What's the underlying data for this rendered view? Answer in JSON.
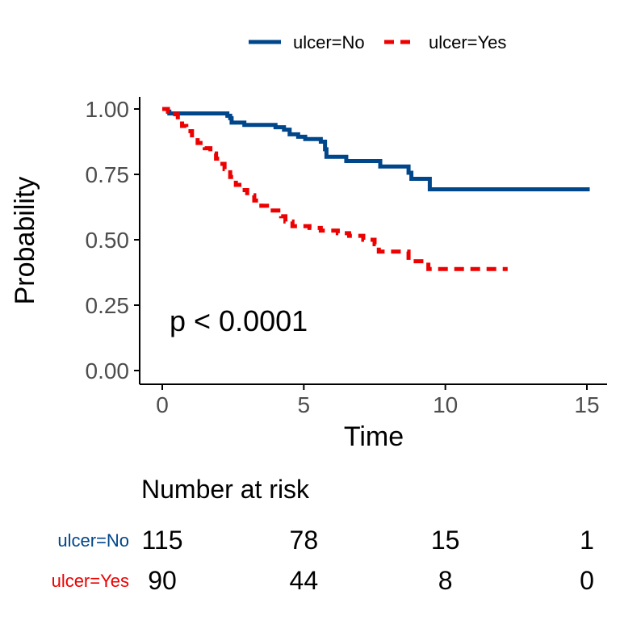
{
  "chart_data": {
    "type": "line",
    "subtype": "kaplan-meier",
    "title": "",
    "xlabel": "Time",
    "ylabel": "Probability",
    "xlim": [
      0,
      15
    ],
    "ylim": [
      0,
      1
    ],
    "x_ticks": [
      0,
      5,
      10,
      15
    ],
    "x_tick_labels": [
      "0",
      "5",
      "10",
      "15"
    ],
    "y_ticks": [
      0,
      0.25,
      0.5,
      0.75,
      1.0
    ],
    "y_tick_labels": [
      "0.00",
      "0.25",
      "0.50",
      "0.75",
      "1.00"
    ],
    "grid": false,
    "legend_position": "top",
    "annotation": "p < 0.0001",
    "series": [
      {
        "name": "ulcer=No",
        "color": "#00468B",
        "line_style": "solid",
        "steps": [
          [
            0,
            1.0
          ],
          [
            0.2,
            0.99
          ],
          [
            0.25,
            0.983
          ],
          [
            2.2,
            0.983
          ],
          [
            2.3,
            0.974
          ],
          [
            2.4,
            0.965
          ],
          [
            2.45,
            0.948
          ],
          [
            2.9,
            0.939
          ],
          [
            3.9,
            0.939
          ],
          [
            4.0,
            0.93
          ],
          [
            4.3,
            0.921
          ],
          [
            4.5,
            0.903
          ],
          [
            4.8,
            0.894
          ],
          [
            5.05,
            0.885
          ],
          [
            5.6,
            0.875
          ],
          [
            5.75,
            0.846
          ],
          [
            5.8,
            0.817
          ],
          [
            6.5,
            0.801
          ],
          [
            7.7,
            0.78
          ],
          [
            8.7,
            0.756
          ],
          [
            8.8,
            0.733
          ],
          [
            9.45,
            0.693
          ],
          [
            15.1,
            0.693
          ]
        ]
      },
      {
        "name": "ulcer=Yes",
        "color": "#ED0000",
        "line_style": "dashed",
        "steps": [
          [
            0,
            1.0
          ],
          [
            0.2,
            0.99
          ],
          [
            0.35,
            0.98
          ],
          [
            0.55,
            0.96
          ],
          [
            0.7,
            0.935
          ],
          [
            0.85,
            0.915
          ],
          [
            1.05,
            0.89
          ],
          [
            1.25,
            0.87
          ],
          [
            1.5,
            0.85
          ],
          [
            1.7,
            0.83
          ],
          [
            1.9,
            0.81
          ],
          [
            2.05,
            0.79
          ],
          [
            2.2,
            0.77
          ],
          [
            2.4,
            0.74
          ],
          [
            2.6,
            0.71
          ],
          [
            2.8,
            0.69
          ],
          [
            3.0,
            0.67
          ],
          [
            3.25,
            0.65
          ],
          [
            3.5,
            0.63
          ],
          [
            3.7,
            0.612
          ],
          [
            4.2,
            0.59
          ],
          [
            4.35,
            0.57
          ],
          [
            4.6,
            0.552
          ],
          [
            5.2,
            0.545
          ],
          [
            5.6,
            0.535
          ],
          [
            6.2,
            0.525
          ],
          [
            6.6,
            0.515
          ],
          [
            7.1,
            0.5
          ],
          [
            7.5,
            0.483
          ],
          [
            7.65,
            0.455
          ],
          [
            8.7,
            0.418
          ],
          [
            9.4,
            0.388
          ],
          [
            12.2,
            0.388
          ]
        ]
      }
    ],
    "risk_table": {
      "title": "Number at risk",
      "times": [
        0,
        5,
        10,
        15
      ],
      "rows": [
        {
          "name": "ulcer=No",
          "color": "#00468B",
          "counts": [
            "115",
            "78",
            "15",
            "1"
          ]
        },
        {
          "name": "ulcer=Yes",
          "color": "#ED0000",
          "counts": [
            "90",
            "44",
            "8",
            "0"
          ]
        }
      ]
    }
  }
}
